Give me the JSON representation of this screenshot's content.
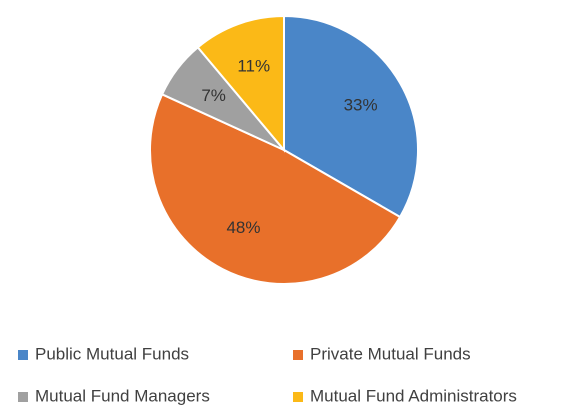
{
  "chart_data": {
    "type": "pie",
    "categories": [
      "Public Mutual Funds",
      "Private Mutual Funds",
      "Mutual Fund Managers",
      "Mutual Fund Administrators"
    ],
    "values": [
      33,
      48,
      7,
      11
    ],
    "value_labels": [
      "33%",
      "48%",
      "7%",
      "11%"
    ],
    "colors": [
      "#4a86c8",
      "#e8702a",
      "#a0a0a0",
      "#fbb917"
    ]
  }
}
